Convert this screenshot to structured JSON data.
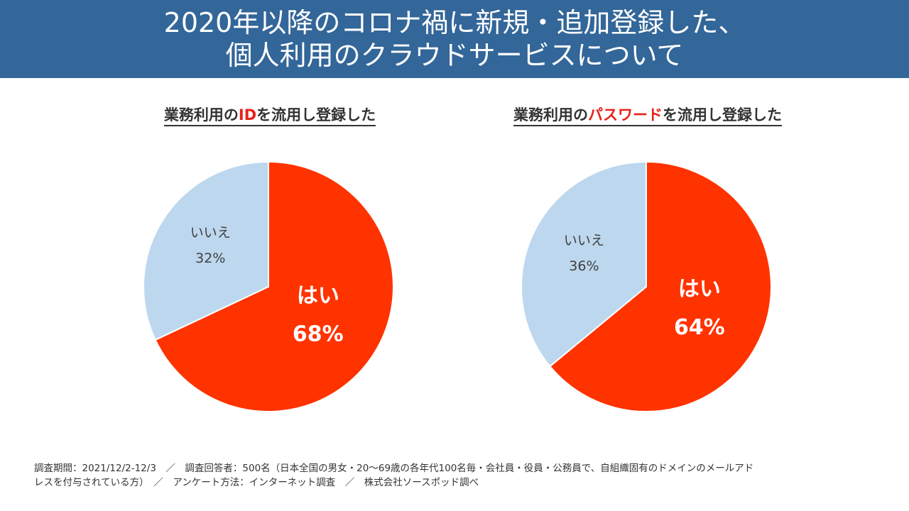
{
  "header": {
    "line1": "2020年以降のコロナ禍に新規・追加登録した、",
    "line2": "個人利用のクラウドサービスについて"
  },
  "colors": {
    "header_bg": "#336699",
    "yes": "#ff3300",
    "no": "#bdd7ee",
    "highlight": "#e8201a"
  },
  "chart_data": [
    {
      "type": "pie",
      "title_prefix": "業務利用の",
      "title_highlight": "ID",
      "title_suffix": "を流用し登録した",
      "slices": [
        {
          "label": "はい",
          "value": 68,
          "display": "68%"
        },
        {
          "label": "いいえ",
          "value": 32,
          "display": "32%"
        }
      ]
    },
    {
      "type": "pie",
      "title_prefix": "業務利用の",
      "title_highlight": "パスワード",
      "title_suffix": "を流用し登録した",
      "slices": [
        {
          "label": "はい",
          "value": 64,
          "display": "64%"
        },
        {
          "label": "いいえ",
          "value": 36,
          "display": "36%"
        }
      ]
    }
  ],
  "footer": {
    "line1": "調査期間：2021/12/2-12/3　／　調査回答者：500名（日本全国の男女・20〜69歳の各年代100名毎・会社員・役員・公務員で、自組織固有のドメインのメールアド",
    "line2": "レスを付与されている方）　／　アンケート方法：インターネット調査　／　株式会社ソースポッド調べ"
  }
}
